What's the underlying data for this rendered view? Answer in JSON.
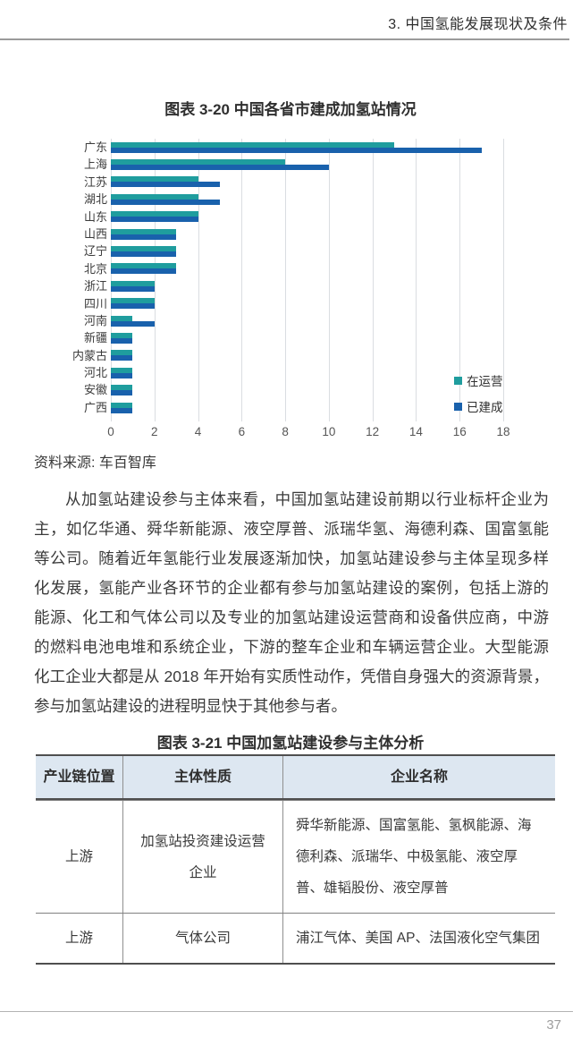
{
  "header": {
    "title": "3. 中国氢能发展现状及条件"
  },
  "figure_320": {
    "title": "图表 3-20 中国各省市建成加氢站情况",
    "source": "资料来源: 车百智库"
  },
  "chart_data": {
    "type": "bar",
    "orientation": "horizontal",
    "title": "图表 3-20 中国各省市建成加氢站情况",
    "categories": [
      "广东",
      "上海",
      "江苏",
      "湖北",
      "山东",
      "山西",
      "辽宁",
      "北京",
      "浙江",
      "四川",
      "河南",
      "新疆",
      "内蒙古",
      "河北",
      "安徽",
      "广西"
    ],
    "series": [
      {
        "name": "在运营",
        "color": "#1f9d9e",
        "values": [
          13,
          8,
          4,
          4,
          4,
          3,
          3,
          3,
          2,
          2,
          1,
          1,
          1,
          1,
          1,
          1
        ]
      },
      {
        "name": "已建成",
        "color": "#1961ac",
        "values": [
          17,
          10,
          5,
          5,
          4,
          3,
          3,
          3,
          2,
          2,
          2,
          1,
          1,
          1,
          1,
          1
        ]
      }
    ],
    "xlim": [
      0,
      18
    ],
    "xticks": [
      0,
      2,
      4,
      6,
      8,
      10,
      12,
      14,
      16,
      18
    ],
    "grid": "vertical-gridlines-on",
    "legend_position": "bottom-right"
  },
  "paragraph": "从加氢站建设参与主体来看，中国加氢站建设前期以行业标杆企业为主，如亿华通、舜华新能源、液空厚普、派瑞华氢、海德利森、国富氢能等公司。随着近年氢能行业发展逐渐加快，加氢站建设参与主体呈现多样化发展，氢能产业各环节的企业都有参与加氢站建设的案例，包括上游的能源、化工和气体公司以及专业的加氢站建设运营商和设备供应商，中游的燃料电池电堆和系统企业，下游的整车企业和车辆运营企业。大型能源化工企业大都是从 2018 年开始有实质性动作，凭借自身强大的资源背景，参与加氢站建设的进程明显快于其他参与者。",
  "table_321": {
    "title": "图表 3-21 中国加氢站建设参与主体分析",
    "headers": [
      "产业链位置",
      "主体性质",
      "企业名称"
    ],
    "rows": [
      [
        "上游",
        "加氢站投资建设运营企业",
        "舜华新能源、国富氢能、氢枫能源、海德利森、派瑞华、中极氢能、液空厚普、雄韬股份、液空厚普"
      ],
      [
        "上游",
        "气体公司",
        "浦江气体、美国 AP、法国液化空气集团"
      ]
    ]
  },
  "footer": {
    "page_number": "37"
  }
}
